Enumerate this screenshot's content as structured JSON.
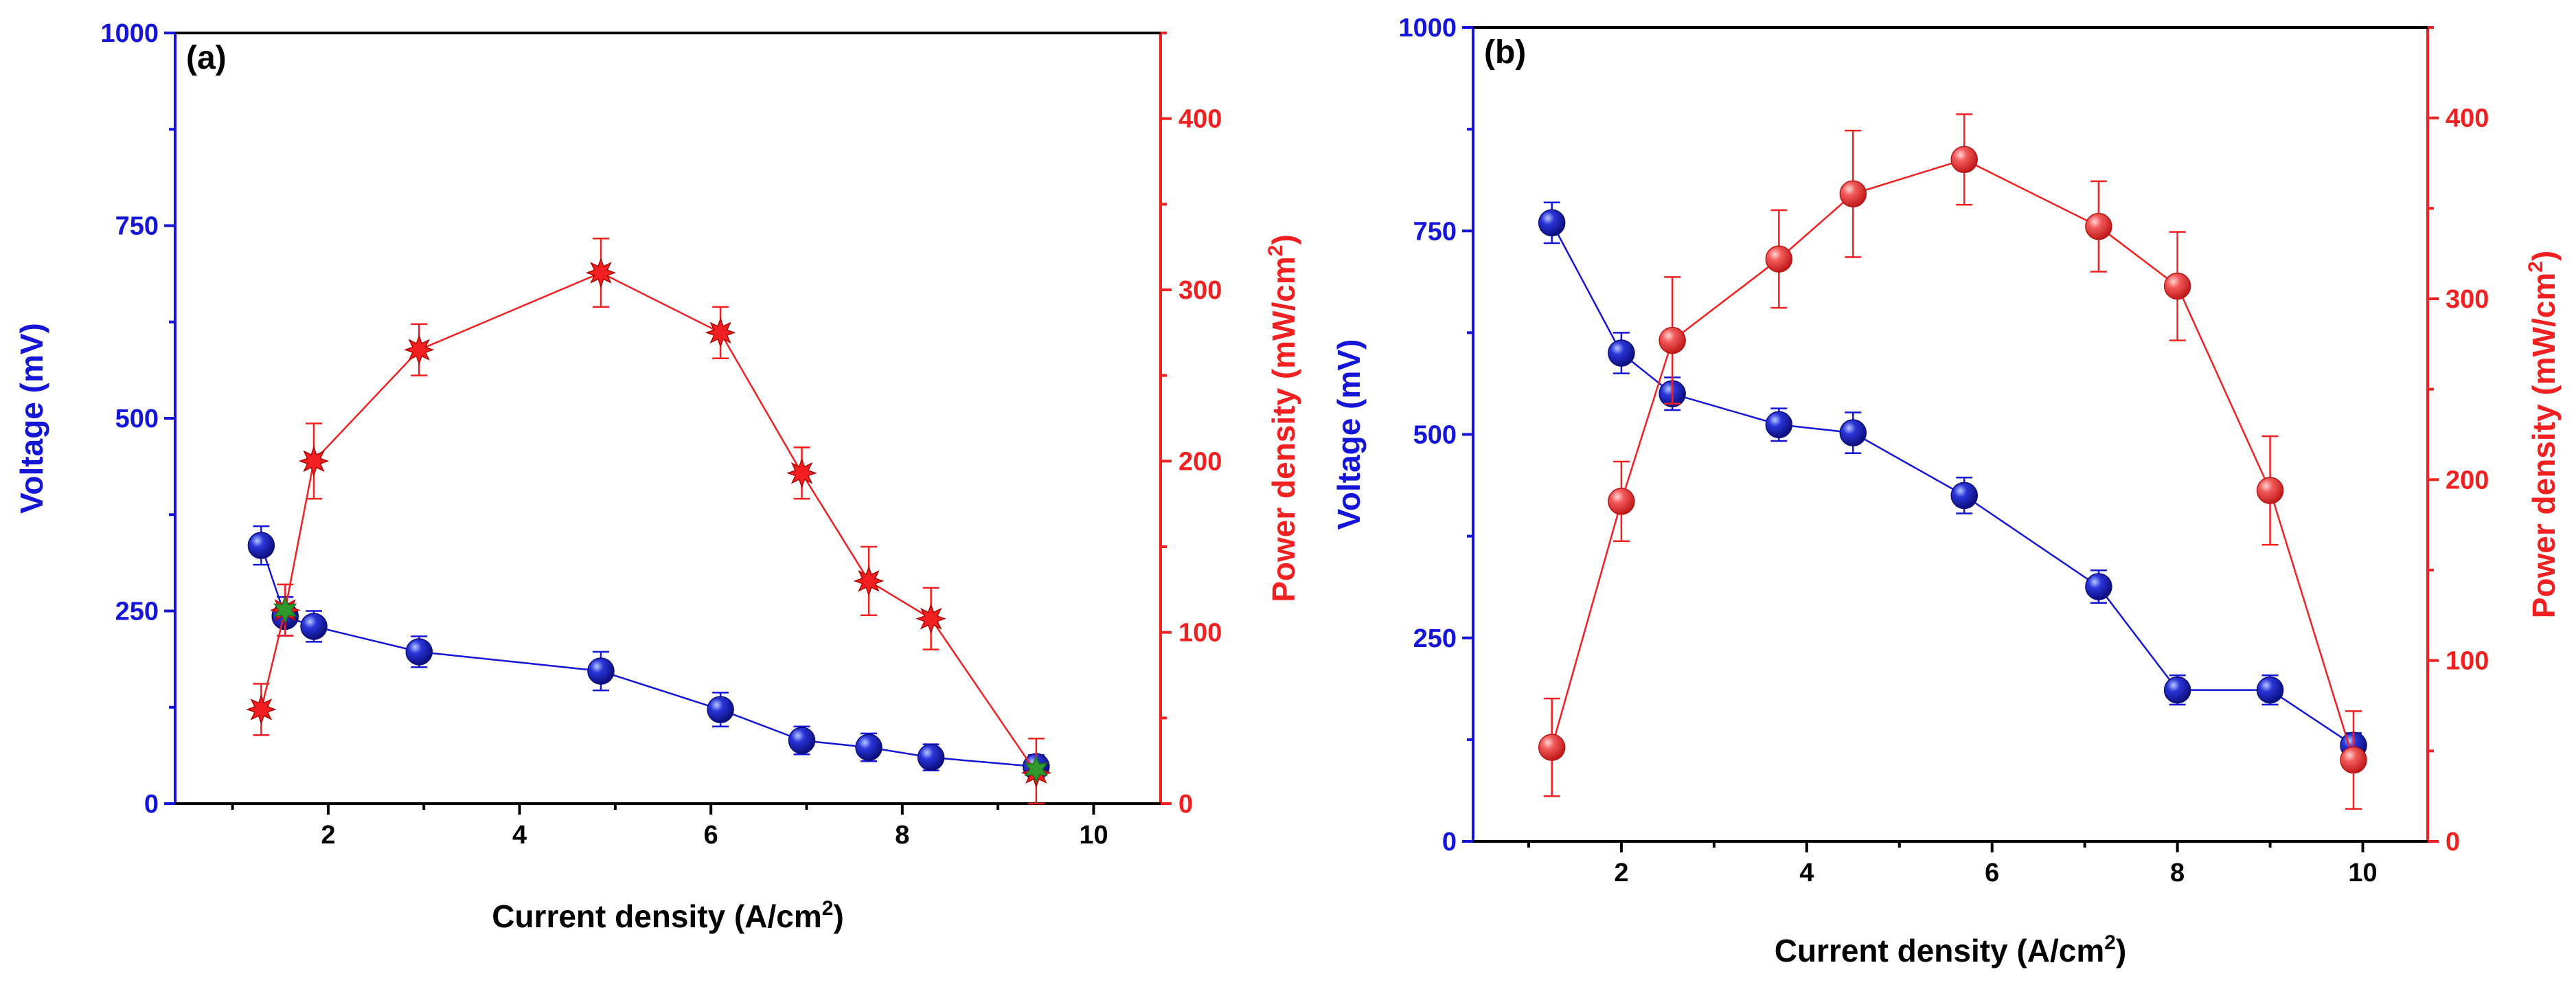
{
  "colors": {
    "voltage": "#1515d8",
    "power": "#f22020",
    "marker_green": "#2e9a2e",
    "axis": "#000000"
  },
  "chart_data": [
    {
      "type": "line",
      "panel_label": "(a)",
      "xlabel": "Current density (A/cm",
      "xlabel_sup": "2",
      "xlabel_end": ")",
      "ylabel_left": "Voltage (mV)",
      "ylabel_right": "Power density (mW/cm",
      "ylabel_right_sup": "2",
      "ylabel_right_end": ")",
      "xlim": [
        0.4,
        10.7
      ],
      "ylim_left": [
        0,
        1000
      ],
      "ylim_right": [
        0,
        450
      ],
      "xticks": [
        2,
        4,
        6,
        8,
        10
      ],
      "xtick_labels": [
        "2",
        "4",
        "6",
        "8",
        "10"
      ],
      "yticks_left": [
        0,
        250,
        500,
        750,
        1000
      ],
      "ytick_labels_left": [
        "0",
        "250",
        "500",
        "750",
        "1000"
      ],
      "yticks_right": [
        0,
        100,
        200,
        300,
        400
      ],
      "ytick_labels_right": [
        "0",
        "100",
        "200",
        "300",
        "400"
      ],
      "series": [
        {
          "name": "Voltage",
          "axis": "left",
          "marker": "circle",
          "x": [
            1.3,
            1.55,
            1.85,
            2.95,
            4.85,
            6.1,
            6.95,
            7.65,
            8.3,
            9.4
          ],
          "y": [
            335,
            243,
            230,
            197,
            172,
            122,
            82,
            73,
            60,
            48
          ],
          "err": [
            25,
            25,
            20,
            20,
            25,
            22,
            18,
            18,
            17,
            15
          ]
        },
        {
          "name": "Power density",
          "axis": "right",
          "marker": "star",
          "x": [
            1.3,
            1.55,
            1.85,
            2.95,
            4.85,
            6.1,
            6.95,
            7.65,
            8.3,
            9.4
          ],
          "y": [
            55,
            113,
            200,
            265,
            310,
            275,
            193,
            130,
            108,
            18
          ],
          "err": [
            15,
            15,
            22,
            15,
            20,
            15,
            15,
            20,
            18,
            20
          ]
        }
      ],
      "green_markers": [
        {
          "axis": "right",
          "x": 1.55,
          "y": 113
        },
        {
          "axis": "right",
          "x": 9.4,
          "y": 20
        }
      ]
    },
    {
      "type": "line",
      "panel_label": "(b)",
      "xlabel": "Current density (A/cm",
      "xlabel_sup": "2",
      "xlabel_end": ")",
      "ylabel_left": "Voltage (mV)",
      "ylabel_right": "Power density (mW/cm",
      "ylabel_right_sup": "2",
      "ylabel_right_end": ")",
      "xlim": [
        0.4,
        10.7
      ],
      "ylim_left": [
        0,
        1000
      ],
      "ylim_right": [
        0,
        450
      ],
      "xticks": [
        2,
        4,
        6,
        8,
        10
      ],
      "xtick_labels": [
        "2",
        "4",
        "6",
        "8",
        "10"
      ],
      "yticks_left": [
        0,
        250,
        500,
        750,
        1000
      ],
      "ytick_labels_left": [
        "0",
        "250",
        "500",
        "750",
        "1000"
      ],
      "yticks_right": [
        0,
        100,
        200,
        300,
        400
      ],
      "ytick_labels_right": [
        "0",
        "100",
        "200",
        "300",
        "400"
      ],
      "series": [
        {
          "name": "Voltage",
          "axis": "left",
          "marker": "circle",
          "x": [
            1.25,
            2.0,
            2.55,
            3.7,
            4.5,
            5.7,
            7.15,
            8.0,
            9.0,
            9.9
          ],
          "y": [
            760,
            600,
            550,
            512,
            502,
            425,
            313,
            186,
            186,
            118
          ],
          "err": [
            25,
            25,
            20,
            20,
            25,
            22,
            20,
            18,
            18,
            15
          ]
        },
        {
          "name": "Power density",
          "axis": "right",
          "marker": "circle",
          "x": [
            1.25,
            2.0,
            2.55,
            3.7,
            4.5,
            5.7,
            7.15,
            8.0,
            9.0,
            9.9
          ],
          "y": [
            52,
            188,
            277,
            322,
            358,
            377,
            340,
            307,
            194,
            45
          ],
          "err": [
            27,
            22,
            35,
            27,
            35,
            25,
            25,
            30,
            30,
            27
          ]
        }
      ],
      "green_markers": []
    }
  ]
}
